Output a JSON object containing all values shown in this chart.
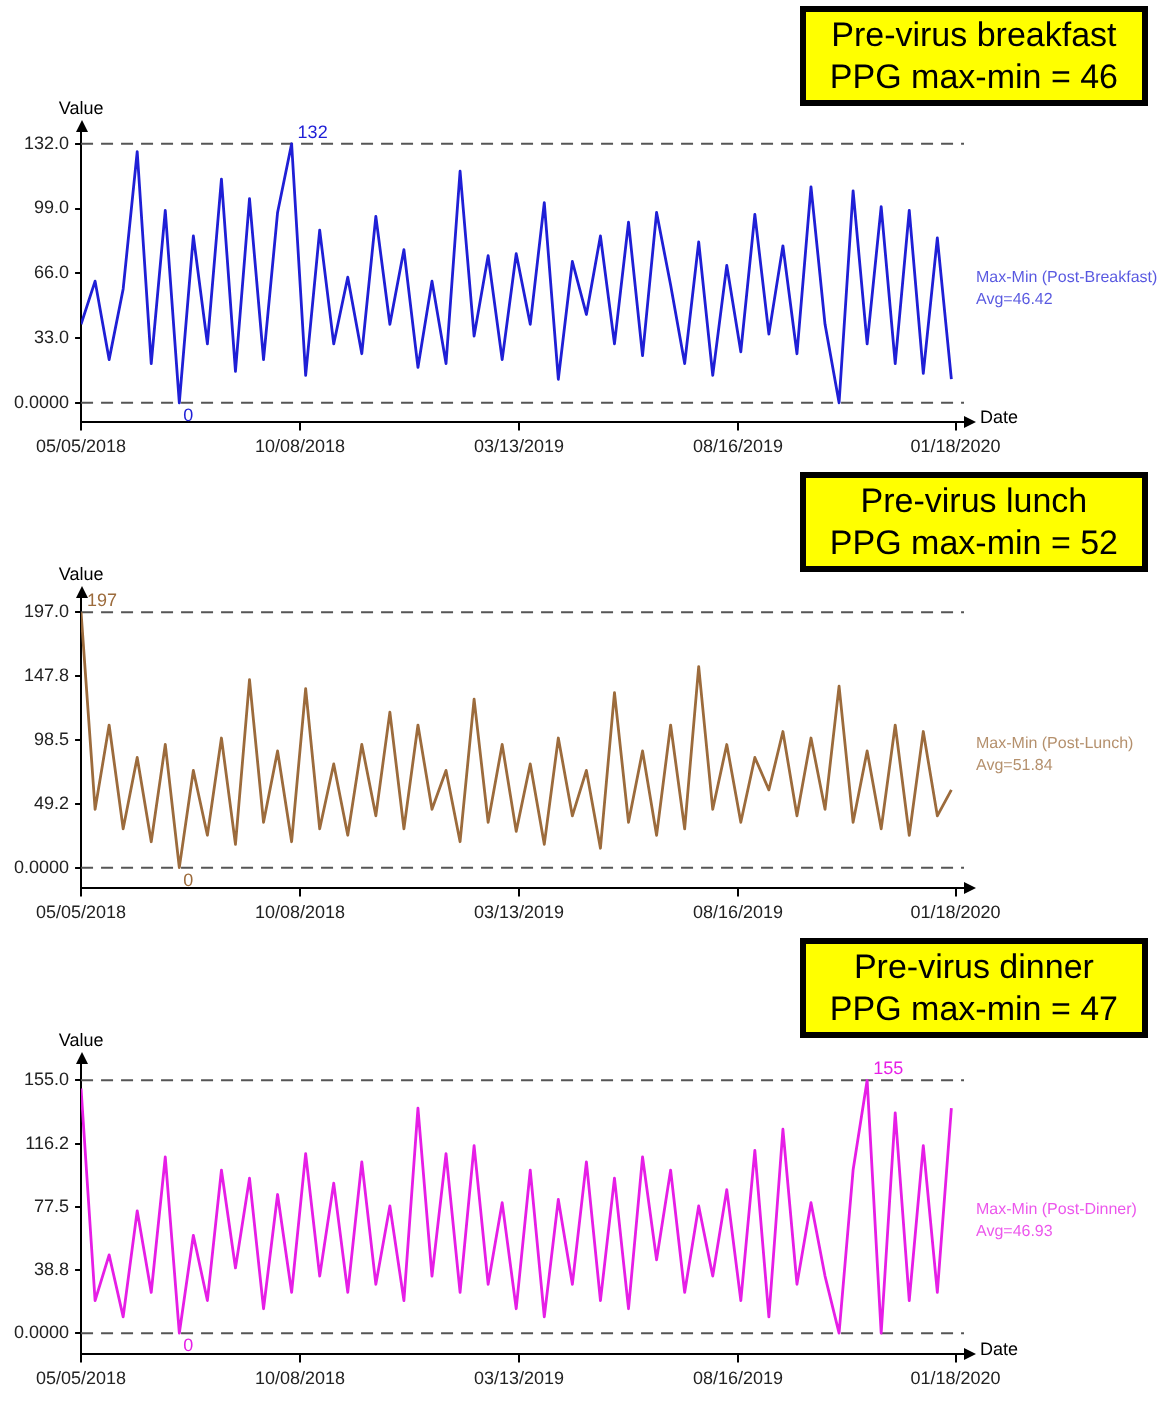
{
  "chart_data": [
    {
      "type": "line",
      "title": "Pre-virus breakfast",
      "subtitle": "PPG max-min = 46",
      "xlabel": "Date",
      "ylabel": "Value",
      "x": [
        "2018-05-05",
        "2018-05-15",
        "2018-05-25",
        "2018-06-04",
        "2018-06-14",
        "2018-06-24",
        "2018-07-04",
        "2018-07-14",
        "2018-07-24",
        "2018-08-03",
        "2018-08-13",
        "2018-08-23",
        "2018-09-02",
        "2018-09-12",
        "2018-09-22",
        "2018-10-02",
        "2018-10-12",
        "2018-10-22",
        "2018-11-01",
        "2018-11-11",
        "2018-11-21",
        "2018-12-01",
        "2018-12-11",
        "2018-12-21",
        "2018-12-31",
        "2019-01-10",
        "2019-01-20",
        "2019-01-30",
        "2019-02-09",
        "2019-02-19",
        "2019-03-01",
        "2019-03-11",
        "2019-03-21",
        "2019-03-31",
        "2019-04-10",
        "2019-04-20",
        "2019-04-30",
        "2019-05-10",
        "2019-05-20",
        "2019-05-30",
        "2019-06-09",
        "2019-06-19",
        "2019-06-29",
        "2019-07-09",
        "2019-07-19",
        "2019-07-29",
        "2019-08-08",
        "2019-08-18",
        "2019-08-28",
        "2019-09-07",
        "2019-09-17",
        "2019-09-27",
        "2019-10-07",
        "2019-10-17",
        "2019-10-27",
        "2019-11-06",
        "2019-11-16",
        "2019-11-26",
        "2019-12-06",
        "2019-12-16",
        "2019-12-26",
        "2020-01-05",
        "2020-01-15"
      ],
      "series": [
        {
          "color": "#1f1fd6",
          "values": [
            40,
            62,
            22,
            58,
            128,
            20,
            98,
            0,
            85,
            30,
            114,
            16,
            104,
            22,
            97,
            132,
            14,
            88,
            30,
            64,
            25,
            95,
            40,
            78,
            18,
            62,
            20,
            118,
            34,
            75,
            22,
            76,
            40,
            102,
            12,
            72,
            45,
            85,
            30,
            92,
            24,
            97,
            60,
            20,
            82,
            14,
            70,
            26,
            96,
            35,
            80,
            25,
            110,
            40,
            0,
            108,
            30,
            100,
            20,
            98,
            15,
            84,
            12
          ]
        }
      ],
      "xlim": [
        "2018-05-05",
        "2020-01-24"
      ],
      "xticks": [
        {
          "value": "2018-05-05",
          "label": "05/05/2018"
        },
        {
          "value": "2018-10-08",
          "label": "10/08/2018"
        },
        {
          "value": "2019-03-13",
          "label": "03/13/2019"
        },
        {
          "value": "2019-08-16",
          "label": "08/16/2019"
        },
        {
          "value": "2020-01-18",
          "label": "01/18/2020"
        }
      ],
      "ylim": [
        -10,
        138
      ],
      "yticks": [
        {
          "value": 0,
          "label": "0.0000"
        },
        {
          "value": 33,
          "label": "33.0"
        },
        {
          "value": 66,
          "label": "66.0"
        },
        {
          "value": 99,
          "label": "99.0"
        },
        {
          "value": 132,
          "label": "132.0"
        }
      ],
      "ref_lines": [
        {
          "axis": "y",
          "value": 0,
          "color": "#555555",
          "line_style": "dashed"
        },
        {
          "axis": "y",
          "value": 132,
          "color": "#555555",
          "line_style": "dashed"
        }
      ],
      "annotations": [
        {
          "text": "132",
          "x": "2018-10-02",
          "y": 132
        },
        {
          "text": "0",
          "x": "2018-07-14",
          "y": 0
        },
        "Max-Min (Post-Breakfast)",
        "Avg=46.42"
      ],
      "grid": false
    },
    {
      "type": "line",
      "title": "Pre-virus lunch",
      "subtitle": "PPG max-min = 52",
      "ylabel": "Value",
      "x": [
        "2018-05-05",
        "2018-05-15",
        "2018-05-25",
        "2018-06-04",
        "2018-06-14",
        "2018-06-24",
        "2018-07-04",
        "2018-07-14",
        "2018-07-24",
        "2018-08-03",
        "2018-08-13",
        "2018-08-23",
        "2018-09-02",
        "2018-09-12",
        "2018-09-22",
        "2018-10-02",
        "2018-10-12",
        "2018-10-22",
        "2018-11-01",
        "2018-11-11",
        "2018-11-21",
        "2018-12-01",
        "2018-12-11",
        "2018-12-21",
        "2018-12-31",
        "2019-01-10",
        "2019-01-20",
        "2019-01-30",
        "2019-02-09",
        "2019-02-19",
        "2019-03-01",
        "2019-03-11",
        "2019-03-21",
        "2019-03-31",
        "2019-04-10",
        "2019-04-20",
        "2019-04-30",
        "2019-05-10",
        "2019-05-20",
        "2019-05-30",
        "2019-06-09",
        "2019-06-19",
        "2019-06-29",
        "2019-07-09",
        "2019-07-19",
        "2019-07-29",
        "2019-08-08",
        "2019-08-18",
        "2019-08-28",
        "2019-09-07",
        "2019-09-17",
        "2019-09-27",
        "2019-10-07",
        "2019-10-17",
        "2019-10-27",
        "2019-11-06",
        "2019-11-16",
        "2019-11-26",
        "2019-12-06",
        "2019-12-16",
        "2019-12-26",
        "2020-01-05",
        "2020-01-15"
      ],
      "series": [
        {
          "color": "#9c6b3c",
          "values": [
            197,
            45,
            110,
            30,
            85,
            20,
            95,
            0,
            75,
            25,
            100,
            18,
            145,
            35,
            90,
            20,
            138,
            30,
            80,
            25,
            95,
            40,
            120,
            30,
            110,
            45,
            75,
            20,
            130,
            35,
            95,
            28,
            80,
            18,
            100,
            40,
            75,
            15,
            135,
            35,
            90,
            25,
            110,
            30,
            155,
            45,
            95,
            35,
            85,
            60,
            105,
            40,
            100,
            45,
            140,
            35,
            90,
            30,
            110,
            25,
            105,
            40,
            60
          ]
        }
      ],
      "xlim": [
        "2018-05-05",
        "2020-01-24"
      ],
      "xticks": [
        {
          "value": "2018-05-05",
          "label": "05/05/2018"
        },
        {
          "value": "2018-10-08",
          "label": "10/08/2018"
        },
        {
          "value": "2019-03-13",
          "label": "03/13/2019"
        },
        {
          "value": "2019-08-16",
          "label": "08/16/2019"
        },
        {
          "value": "2020-01-18",
          "label": "01/18/2020"
        }
      ],
      "ylim": [
        -16,
        208
      ],
      "yticks": [
        {
          "value": 0,
          "label": "0.0000"
        },
        {
          "value": 49.25,
          "label": "49.2"
        },
        {
          "value": 98.5,
          "label": "98.5"
        },
        {
          "value": 147.75,
          "label": "147.8"
        },
        {
          "value": 197,
          "label": "197.0"
        }
      ],
      "ref_lines": [
        {
          "axis": "y",
          "value": 0,
          "color": "#555555",
          "line_style": "dashed"
        },
        {
          "axis": "y",
          "value": 197,
          "color": "#555555",
          "line_style": "dashed"
        }
      ],
      "annotations": [
        {
          "text": "197",
          "x": "2018-05-05",
          "y": 197
        },
        {
          "text": "0",
          "x": "2018-07-14",
          "y": 0
        },
        "Max-Min (Post-Lunch)",
        "Avg=51.84"
      ],
      "grid": false
    },
    {
      "type": "line",
      "title": "Pre-virus dinner",
      "subtitle": "PPG max-min = 47",
      "xlabel": "Date",
      "ylabel": "Value",
      "x": [
        "2018-05-05",
        "2018-05-15",
        "2018-05-25",
        "2018-06-04",
        "2018-06-14",
        "2018-06-24",
        "2018-07-04",
        "2018-07-14",
        "2018-07-24",
        "2018-08-03",
        "2018-08-13",
        "2018-08-23",
        "2018-09-02",
        "2018-09-12",
        "2018-09-22",
        "2018-10-02",
        "2018-10-12",
        "2018-10-22",
        "2018-11-01",
        "2018-11-11",
        "2018-11-21",
        "2018-12-01",
        "2018-12-11",
        "2018-12-21",
        "2018-12-31",
        "2019-01-10",
        "2019-01-20",
        "2019-01-30",
        "2019-02-09",
        "2019-02-19",
        "2019-03-01",
        "2019-03-11",
        "2019-03-21",
        "2019-03-31",
        "2019-04-10",
        "2019-04-20",
        "2019-04-30",
        "2019-05-10",
        "2019-05-20",
        "2019-05-30",
        "2019-06-09",
        "2019-06-19",
        "2019-06-29",
        "2019-07-09",
        "2019-07-19",
        "2019-07-29",
        "2019-08-08",
        "2019-08-18",
        "2019-08-28",
        "2019-09-07",
        "2019-09-17",
        "2019-09-27",
        "2019-10-07",
        "2019-10-17",
        "2019-10-27",
        "2019-11-06",
        "2019-11-16",
        "2019-11-26",
        "2019-12-06",
        "2019-12-16",
        "2019-12-26",
        "2020-01-05",
        "2020-01-15"
      ],
      "series": [
        {
          "color": "#e61ee6",
          "values": [
            150,
            20,
            48,
            10,
            75,
            25,
            108,
            0,
            60,
            20,
            100,
            40,
            95,
            15,
            85,
            25,
            110,
            35,
            92,
            25,
            105,
            30,
            78,
            20,
            138,
            35,
            110,
            25,
            115,
            30,
            80,
            15,
            100,
            10,
            82,
            30,
            105,
            20,
            95,
            15,
            108,
            45,
            100,
            25,
            78,
            35,
            88,
            20,
            112,
            10,
            125,
            30,
            80,
            35,
            0,
            100,
            155,
            0,
            135,
            20,
            115,
            25,
            138
          ]
        }
      ],
      "xlim": [
        "2018-05-05",
        "2020-01-24"
      ],
      "xticks": [
        {
          "value": "2018-05-05",
          "label": "05/05/2018"
        },
        {
          "value": "2018-10-08",
          "label": "10/08/2018"
        },
        {
          "value": "2019-03-13",
          "label": "03/13/2019"
        },
        {
          "value": "2019-08-16",
          "label": "08/16/2019"
        },
        {
          "value": "2020-01-18",
          "label": "01/18/2020"
        }
      ],
      "ylim": [
        -13,
        165
      ],
      "yticks": [
        {
          "value": 0,
          "label": "0.0000"
        },
        {
          "value": 38.75,
          "label": "38.8"
        },
        {
          "value": 77.5,
          "label": "77.5"
        },
        {
          "value": 116.25,
          "label": "116.2"
        },
        {
          "value": 155,
          "label": "155.0"
        }
      ],
      "ref_lines": [
        {
          "axis": "y",
          "value": 0,
          "color": "#555555",
          "line_style": "dashed"
        },
        {
          "axis": "y",
          "value": 155,
          "color": "#555555",
          "line_style": "dashed"
        }
      ],
      "annotations": [
        {
          "text": "155",
          "x": "2019-11-16",
          "y": 155
        },
        {
          "text": "0",
          "x": "2018-07-14",
          "y": 0
        },
        "Max-Min (Post-Dinner)",
        "Avg=46.93"
      ],
      "grid": false
    }
  ]
}
